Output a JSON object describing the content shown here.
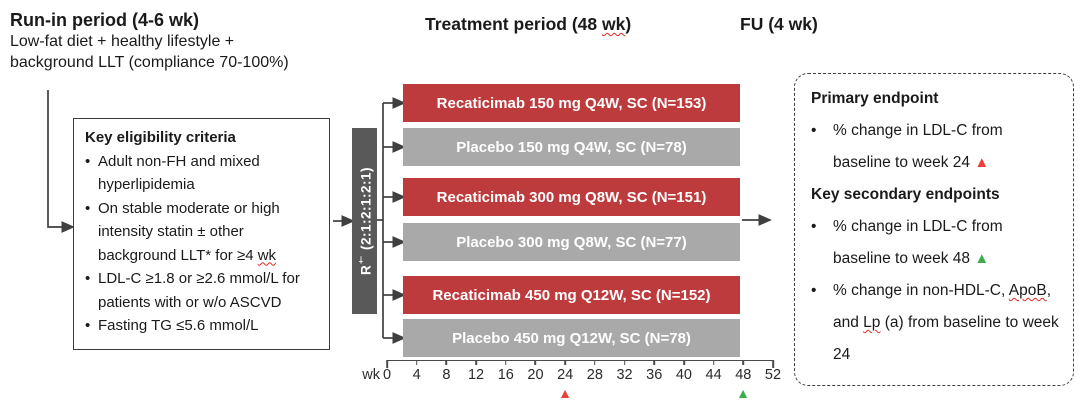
{
  "colors": {
    "arm_active": "#BD3A3D",
    "arm_placebo": "#A9A9A9",
    "randomization_box": "#595959",
    "marker_week24": "#E8403A",
    "marker_week48": "#3BAE49",
    "line": "#3f3f3f"
  },
  "run_in": {
    "title": "Run-in period (4-6 wk)",
    "subtitle_line1": "Low-fat diet + healthy lifestyle +",
    "subtitle_line2": "background LLT (compliance 70-100%)"
  },
  "periods": {
    "treatment_pre": "Treatment period (48 ",
    "treatment_wk": "wk",
    "treatment_post": ")",
    "fu": "FU (4 wk)"
  },
  "eligibility": {
    "title": "Key eligibility criteria",
    "bullet1": "Adult non-FH and mixed hyperlipidemia",
    "bullet2_pre": "On stable moderate or high intensity statin ± other background LLT* for ≥4 ",
    "bullet2_wk": "wk",
    "bullet3": "LDL-C ≥1.8 or ≥2.6 mmol/L for patients with or w/o ASCVD",
    "bullet4": "Fasting TG ≤5.6 mmol/L"
  },
  "randomization": {
    "r": "R",
    "dagger": "†",
    "ratio": " (2:1:2:1:2:1)"
  },
  "arms": [
    {
      "label": "Recaticimab 150 mg Q4W, SC (N=153)",
      "type": "recaticimab"
    },
    {
      "label": "Placebo 150 mg Q4W, SC (N=78)",
      "type": "placebo"
    },
    {
      "label": "Recaticimab 300 mg Q8W, SC (N=151)",
      "type": "recaticimab"
    },
    {
      "label": "Placebo 300 mg Q8W, SC (N=77)",
      "type": "placebo"
    },
    {
      "label": "Recaticimab 450 mg Q12W, SC (N=152)",
      "type": "recaticimab"
    },
    {
      "label": "Placebo 450 mg Q12W, SC (N=78)",
      "type": "placebo"
    }
  ],
  "axis": {
    "unit": "wk",
    "ticks": [
      "0",
      "4",
      "8",
      "12",
      "16",
      "20",
      "24",
      "28",
      "32",
      "36",
      "40",
      "44",
      "48",
      "52"
    ],
    "markers": [
      {
        "week": "24",
        "color": "red"
      },
      {
        "week": "48",
        "color": "green"
      }
    ]
  },
  "endpoints": {
    "primary_title": "Primary endpoint",
    "primary_b1_text": "% change in LDL-C from baseline to week 24 ",
    "secondary_title": "Key secondary endpoints",
    "secondary_b1_text": "% change in LDL-C from baseline to week 48 ",
    "secondary_b2_p1": "% change in non-HDL-C, ",
    "secondary_b2_apob": "ApoB",
    "secondary_b2_p2": ", and ",
    "secondary_b2_lp": "Lp",
    "secondary_b2_p3": " (a) from baseline to week 24"
  },
  "icons": {
    "triangle_up": "▲",
    "bullet": "•"
  }
}
